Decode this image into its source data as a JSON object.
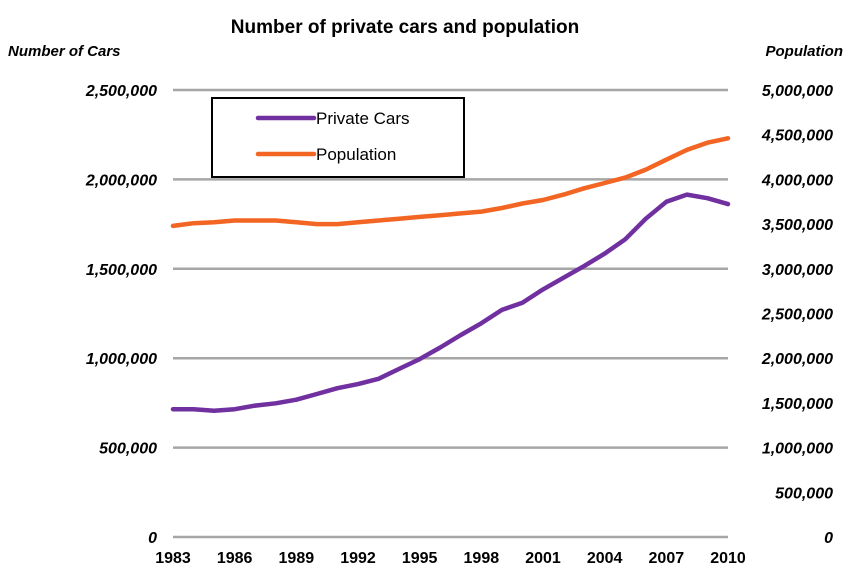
{
  "chart_data": {
    "type": "line",
    "title": "Number of private cars and population",
    "left_axis_label": "Number of Cars",
    "right_axis_label": "Population",
    "x": [
      1983,
      1984,
      1985,
      1986,
      1987,
      1988,
      1989,
      1990,
      1991,
      1992,
      1993,
      1994,
      1995,
      1996,
      1997,
      1998,
      1999,
      2000,
      2001,
      2002,
      2003,
      2004,
      2005,
      2006,
      2007,
      2008,
      2009,
      2010
    ],
    "x_tick_labels": [
      "1983",
      "1986",
      "1989",
      "1992",
      "1995",
      "1998",
      "2001",
      "2004",
      "2007",
      "2010"
    ],
    "left_ylim": [
      0,
      2500000
    ],
    "left_y_tick_labels": [
      "0",
      "500,000",
      "1,000,000",
      "1,500,000",
      "2,000,000",
      "2,500,000"
    ],
    "right_ylim": [
      0,
      5000000
    ],
    "right_y_tick_labels": [
      "0",
      "500,000",
      "1,000,000",
      "1,500,000",
      "2,000,000",
      "2,500,000",
      "3,000,000",
      "3,500,000",
      "4,000,000",
      "4,500,000",
      "5,000,000"
    ],
    "grid": "horizontal",
    "legend_position": "top-left",
    "series": [
      {
        "name": "Private Cars",
        "axis": "left",
        "color": "#7030A0",
        "values": [
          715000,
          714000,
          706000,
          715000,
          735000,
          748000,
          768000,
          800000,
          832000,
          855000,
          885000,
          940000,
          995000,
          1060000,
          1130000,
          1195000,
          1270000,
          1310000,
          1385000,
          1450000,
          1515000,
          1585000,
          1665000,
          1780000,
          1875000,
          1915000,
          1895000,
          1862000
        ]
      },
      {
        "name": "Population",
        "axis": "right",
        "color": "#F26522",
        "values": [
          3480000,
          3510000,
          3520000,
          3540000,
          3540000,
          3540000,
          3520000,
          3500000,
          3500000,
          3520000,
          3540000,
          3560000,
          3580000,
          3600000,
          3620000,
          3640000,
          3680000,
          3730000,
          3770000,
          3830000,
          3900000,
          3960000,
          4020000,
          4110000,
          4220000,
          4330000,
          4410000,
          4460000
        ]
      }
    ]
  }
}
